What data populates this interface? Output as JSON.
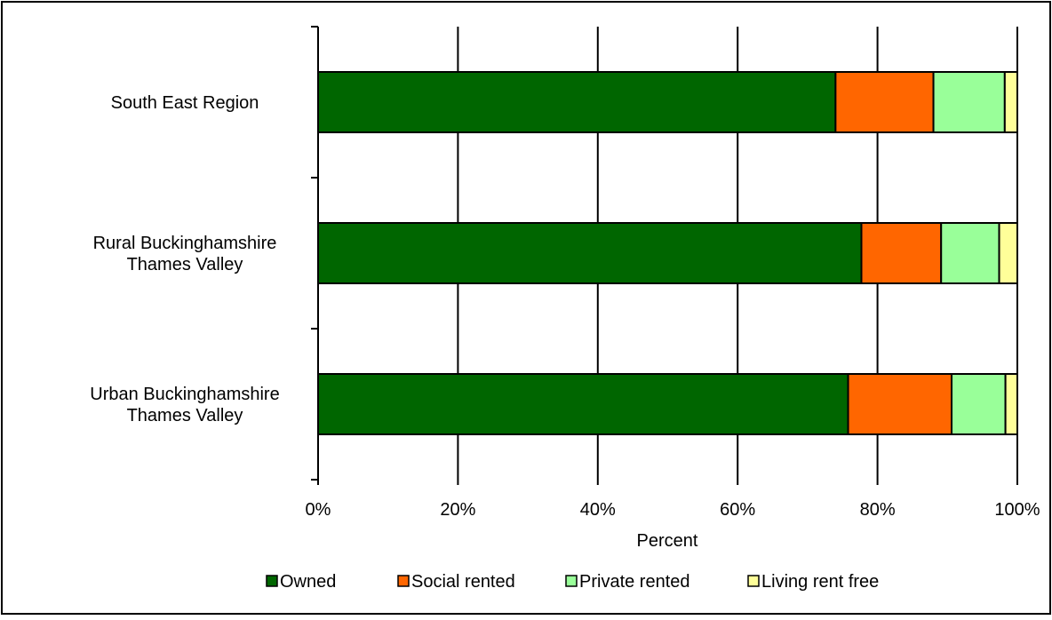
{
  "chart_data": {
    "type": "bar",
    "orientation": "horizontal",
    "stacked": true,
    "percent_stacked": true,
    "categories": [
      [
        "South East Region"
      ],
      [
        "Rural Buckinghamshire",
        "Thames Valley"
      ],
      [
        "Urban Buckinghamshire",
        "Thames Valley"
      ]
    ],
    "series": [
      {
        "name": "Owned",
        "color": "#006600",
        "values": [
          74,
          77.7,
          75.8
        ]
      },
      {
        "name": "Social rented",
        "color": "#FF6600",
        "values": [
          14,
          11.4,
          14.8
        ]
      },
      {
        "name": "Private rented",
        "color": "#99FF99",
        "values": [
          10.2,
          8.3,
          7.7
        ]
      },
      {
        "name": "Living rent free",
        "color": "#FFFF99",
        "values": [
          1.8,
          2.6,
          1.7
        ]
      }
    ],
    "xlabel": "Percent",
    "xlim": [
      0,
      100
    ],
    "xticks": [
      "0%",
      "20%",
      "40%",
      "60%",
      "80%",
      "100%"
    ],
    "grid": "vertical",
    "legend": "bottom"
  }
}
